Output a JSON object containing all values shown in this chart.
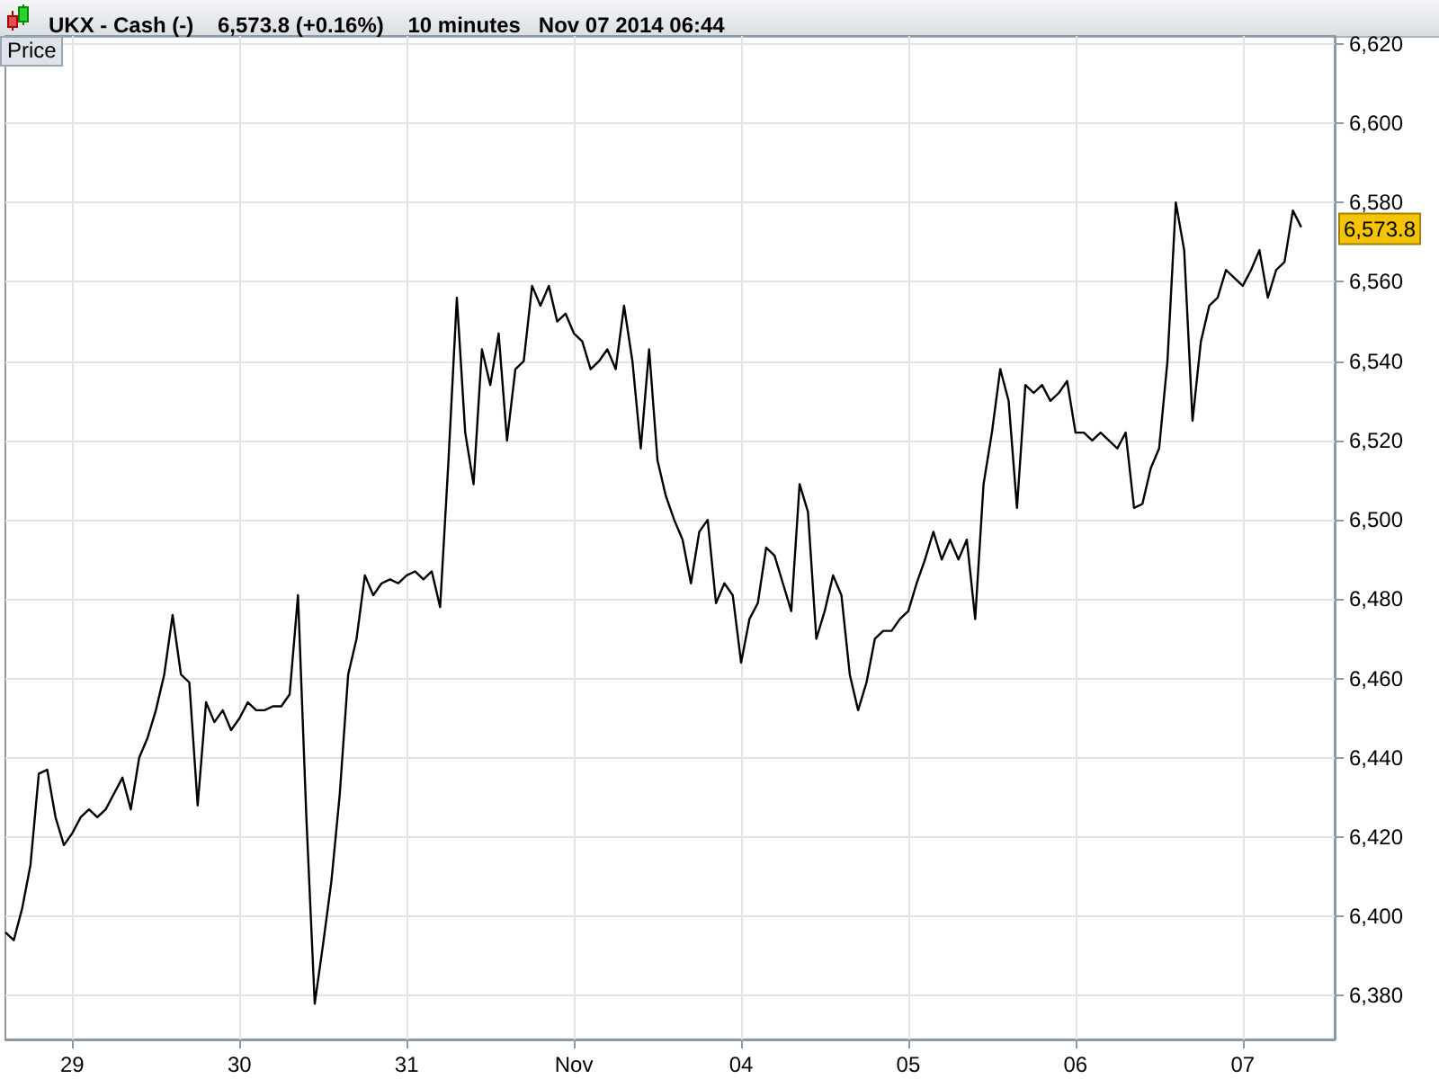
{
  "chart_data": {
    "type": "line",
    "title": "UKX - Cash (-)    6,573.8 (+0.16%)    10 minutes   Nov 07 2014 06:44",
    "annotations": [
      "Price",
      "6,573.8"
    ],
    "categories": [
      null,
      null,
      null,
      null,
      null,
      null,
      null,
      null,
      "29",
      null,
      null,
      null,
      null,
      null,
      null,
      null,
      null,
      null,
      null,
      null,
      null,
      null,
      null,
      null,
      null,
      null,
      null,
      null,
      "30",
      null,
      null,
      null,
      null,
      null,
      null,
      null,
      null,
      null,
      null,
      null,
      null,
      null,
      null,
      null,
      null,
      null,
      null,
      null,
      "31",
      null,
      null,
      null,
      null,
      null,
      null,
      null,
      null,
      null,
      null,
      null,
      null,
      null,
      null,
      null,
      null,
      null,
      null,
      null,
      "Nov",
      null,
      null,
      null,
      null,
      null,
      null,
      null,
      null,
      null,
      null,
      null,
      null,
      null,
      null,
      null,
      null,
      null,
      null,
      null,
      "04",
      null,
      null,
      null,
      null,
      null,
      null,
      null,
      null,
      null,
      null,
      null,
      null,
      null,
      null,
      null,
      null,
      null,
      null,
      null,
      "05",
      null,
      null,
      null,
      null,
      null,
      null,
      null,
      null,
      null,
      null,
      null,
      null,
      null,
      null,
      null,
      null,
      null,
      null,
      null,
      "06",
      null,
      null,
      null,
      null,
      null,
      null,
      null,
      null,
      null,
      null,
      null,
      null,
      null,
      null,
      null,
      null,
      null,
      null,
      null,
      "07",
      null,
      null,
      null,
      null,
      null,
      null,
      null,
      null,
      null,
      null,
      null
    ],
    "series": [
      {
        "color": "#000000",
        "values": [
          6396,
          6394,
          6402,
          6413,
          6436,
          6437,
          6425,
          6418,
          6421,
          6425,
          6427,
          6425,
          6427,
          6431,
          6435,
          6427,
          6440,
          6445,
          6452,
          6461,
          6476,
          6461,
          6459,
          6428,
          6454,
          6449,
          6452,
          6447,
          6450,
          6454,
          6452,
          6452,
          6453,
          6453,
          6456,
          6481,
          6425,
          6378,
          6393,
          6409,
          6431,
          6461,
          6470,
          6486,
          6481,
          6484,
          6485,
          6484,
          6486,
          6487,
          6485,
          6487,
          6478,
          6515,
          6556,
          6522,
          6509,
          6543,
          6534,
          6547,
          6520,
          6538,
          6540,
          6559,
          6554,
          6559,
          6550,
          6552,
          6547,
          6545,
          6538,
          6540,
          6543,
          6538,
          6554,
          6540,
          6518,
          6543,
          6515,
          6506,
          6500,
          6495,
          6484,
          6497,
          6500,
          6479,
          6484,
          6481,
          6464,
          6475,
          6479,
          6493,
          6491,
          6484,
          6477,
          6509,
          6502,
          6470,
          6477,
          6486,
          6481,
          6461,
          6452,
          6459,
          6470,
          6472,
          6472,
          6475,
          6477,
          6484,
          6490,
          6497,
          6490,
          6495,
          6490,
          6495,
          6475,
          6509,
          6522,
          6538,
          6530,
          6503,
          6534,
          6532,
          6534,
          6530,
          6532,
          6535,
          6522,
          6522,
          6520,
          6522,
          6520,
          6518,
          6522,
          6503,
          6504,
          6513,
          6518,
          6540,
          6580,
          6568,
          6525,
          6545,
          6554,
          6556,
          6563,
          6561,
          6559,
          6563,
          6568,
          6556,
          6563,
          6565,
          6578,
          6573.8,
          null,
          null,
          null,
          null
        ]
      }
    ],
    "ylim": [
      6369,
      6622
    ],
    "yticks": [
      {
        "value": 6380,
        "label": "6,380"
      },
      {
        "value": 6400,
        "label": "6,400"
      },
      {
        "value": 6420,
        "label": "6,420"
      },
      {
        "value": 6440,
        "label": "6,440"
      },
      {
        "value": 6460,
        "label": "6,460"
      },
      {
        "value": 6480,
        "label": "6,480"
      },
      {
        "value": 6500,
        "label": "6,500"
      },
      {
        "value": 6520,
        "label": "6,520"
      },
      {
        "value": 6540,
        "label": "6,540"
      },
      {
        "value": 6560,
        "label": "6,560"
      },
      {
        "value": 6580,
        "label": "6,580"
      },
      {
        "value": 6600,
        "label": "6,600"
      },
      {
        "value": 6620,
        "label": "6,620"
      }
    ],
    "grid": true,
    "line_style": "solid"
  }
}
